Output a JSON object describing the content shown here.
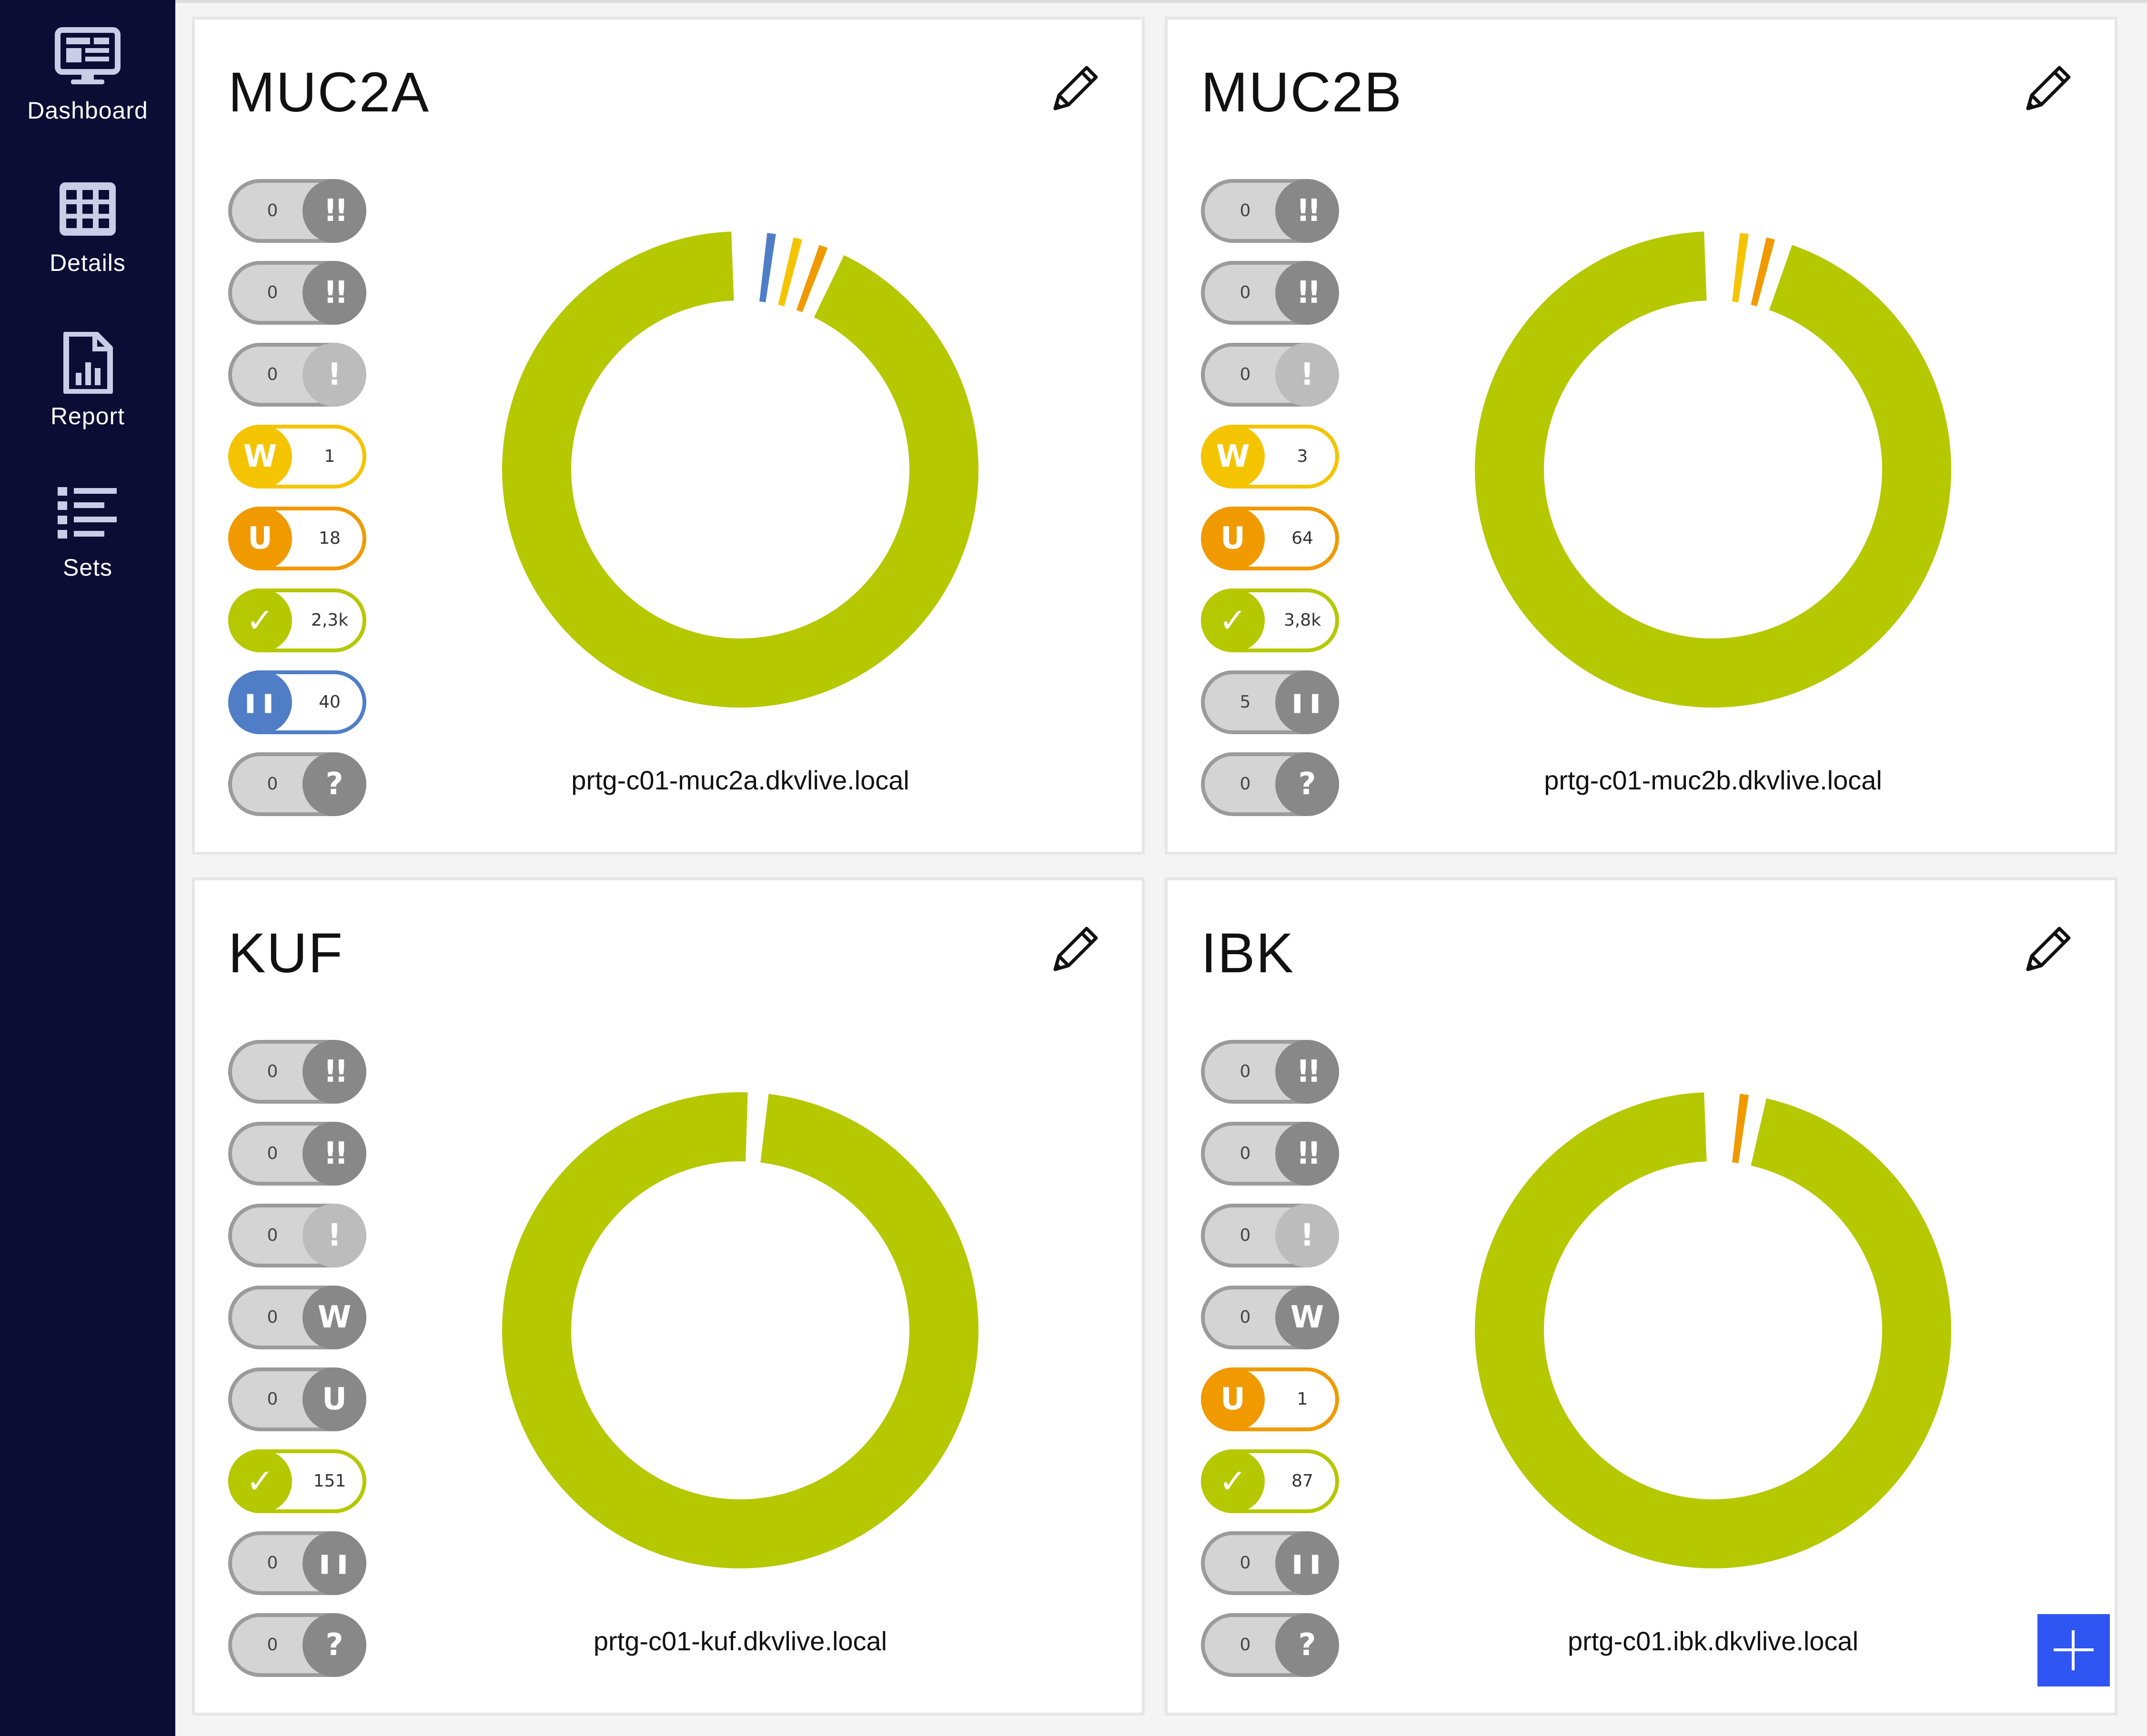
{
  "nav": [
    {
      "label": "Dashboard",
      "icon": "monitor-icon"
    },
    {
      "label": "Details",
      "icon": "grid-icon"
    },
    {
      "label": "Report",
      "icon": "report-icon"
    },
    {
      "label": "Sets",
      "icon": "list-icon"
    }
  ],
  "colors": {
    "up": "#b5c800",
    "warning": "#f5c400",
    "unusual": "#f09a00",
    "paused": "#4f7ec7",
    "inactive": "#d4d4d4",
    "sidebar": "#0c0d35",
    "fab": "#2f55f2"
  },
  "cards": [
    {
      "title": "MUC2A",
      "host": "prtg-c01-muc2a.dkvlive.local",
      "badges": [
        {
          "status": "down",
          "icon": "double-exclamation-icon",
          "glyph": "!!",
          "value": "0",
          "active": false
        },
        {
          "status": "down-acknowledged",
          "icon": "double-exclamation-icon",
          "glyph": "!!",
          "value": "0",
          "active": false
        },
        {
          "status": "down-partial",
          "icon": "exclamation-icon",
          "glyph": "!",
          "value": "0",
          "active": false
        },
        {
          "status": "warning",
          "icon": "w-icon",
          "glyph": "W",
          "value": "1",
          "active": true
        },
        {
          "status": "unusual",
          "icon": "u-icon",
          "glyph": "U",
          "value": "18",
          "active": true
        },
        {
          "status": "up",
          "icon": "check-icon",
          "glyph": "✓",
          "value": "2,3k",
          "active": true
        },
        {
          "status": "paused",
          "icon": "pause-icon",
          "glyph": "❚❚",
          "value": "40",
          "active": true
        },
        {
          "status": "unknown",
          "icon": "question-icon",
          "glyph": "?",
          "value": "0",
          "active": false
        }
      ],
      "donut": [
        {
          "status": "up",
          "value": 2300
        },
        {
          "status": "paused",
          "value": 40
        },
        {
          "status": "warning",
          "value": 40
        },
        {
          "status": "unusual",
          "value": 40
        }
      ]
    },
    {
      "title": "MUC2B",
      "host": "prtg-c01-muc2b.dkvlive.local",
      "badges": [
        {
          "status": "down",
          "icon": "double-exclamation-icon",
          "glyph": "!!",
          "value": "0",
          "active": false
        },
        {
          "status": "down-acknowledged",
          "icon": "double-exclamation-icon",
          "glyph": "!!",
          "value": "0",
          "active": false
        },
        {
          "status": "down-partial",
          "icon": "exclamation-icon",
          "glyph": "!",
          "value": "0",
          "active": false
        },
        {
          "status": "warning",
          "icon": "w-icon",
          "glyph": "W",
          "value": "3",
          "active": true
        },
        {
          "status": "unusual",
          "icon": "u-icon",
          "glyph": "U",
          "value": "64",
          "active": true
        },
        {
          "status": "up",
          "icon": "check-icon",
          "glyph": "✓",
          "value": "3,8k",
          "active": true
        },
        {
          "status": "paused",
          "icon": "pause-icon",
          "glyph": "❚❚",
          "value": "5",
          "active": false
        },
        {
          "status": "unknown",
          "icon": "question-icon",
          "glyph": "?",
          "value": "0",
          "active": false
        }
      ],
      "donut": [
        {
          "status": "up",
          "value": 3800
        },
        {
          "status": "warning",
          "value": 64
        },
        {
          "status": "unusual",
          "value": 64
        }
      ]
    },
    {
      "title": "KUF",
      "host": "prtg-c01-kuf.dkvlive.local",
      "badges": [
        {
          "status": "down",
          "icon": "double-exclamation-icon",
          "glyph": "!!",
          "value": "0",
          "active": false
        },
        {
          "status": "down-acknowledged",
          "icon": "double-exclamation-icon",
          "glyph": "!!",
          "value": "0",
          "active": false
        },
        {
          "status": "down-partial",
          "icon": "exclamation-icon",
          "glyph": "!",
          "value": "0",
          "active": false
        },
        {
          "status": "warning",
          "icon": "w-icon",
          "glyph": "W",
          "value": "0",
          "active": false
        },
        {
          "status": "unusual",
          "icon": "u-icon",
          "glyph": "U",
          "value": "0",
          "active": false
        },
        {
          "status": "up",
          "icon": "check-icon",
          "glyph": "✓",
          "value": "151",
          "active": true
        },
        {
          "status": "paused",
          "icon": "pause-icon",
          "glyph": "❚❚",
          "value": "0",
          "active": false
        },
        {
          "status": "unknown",
          "icon": "question-icon",
          "glyph": "?",
          "value": "0",
          "active": false
        }
      ],
      "donut": [
        {
          "status": "up",
          "value": 151
        }
      ]
    },
    {
      "title": "IBK",
      "host": "prtg-c01.ibk.dkvlive.local",
      "badges": [
        {
          "status": "down",
          "icon": "double-exclamation-icon",
          "glyph": "!!",
          "value": "0",
          "active": false
        },
        {
          "status": "down-acknowledged",
          "icon": "double-exclamation-icon",
          "glyph": "!!",
          "value": "0",
          "active": false
        },
        {
          "status": "down-partial",
          "icon": "exclamation-icon",
          "glyph": "!",
          "value": "0",
          "active": false
        },
        {
          "status": "warning",
          "icon": "w-icon",
          "glyph": "W",
          "value": "0",
          "active": false
        },
        {
          "status": "unusual",
          "icon": "u-icon",
          "glyph": "U",
          "value": "1",
          "active": true
        },
        {
          "status": "up",
          "icon": "check-icon",
          "glyph": "✓",
          "value": "87",
          "active": true
        },
        {
          "status": "paused",
          "icon": "pause-icon",
          "glyph": "❚❚",
          "value": "0",
          "active": false
        },
        {
          "status": "unknown",
          "icon": "question-icon",
          "glyph": "?",
          "value": "0",
          "active": false
        }
      ],
      "donut": [
        {
          "status": "up",
          "value": 87
        },
        {
          "status": "unusual",
          "value": 1.5
        }
      ]
    }
  ],
  "fab": {
    "icon": "plus-icon"
  }
}
